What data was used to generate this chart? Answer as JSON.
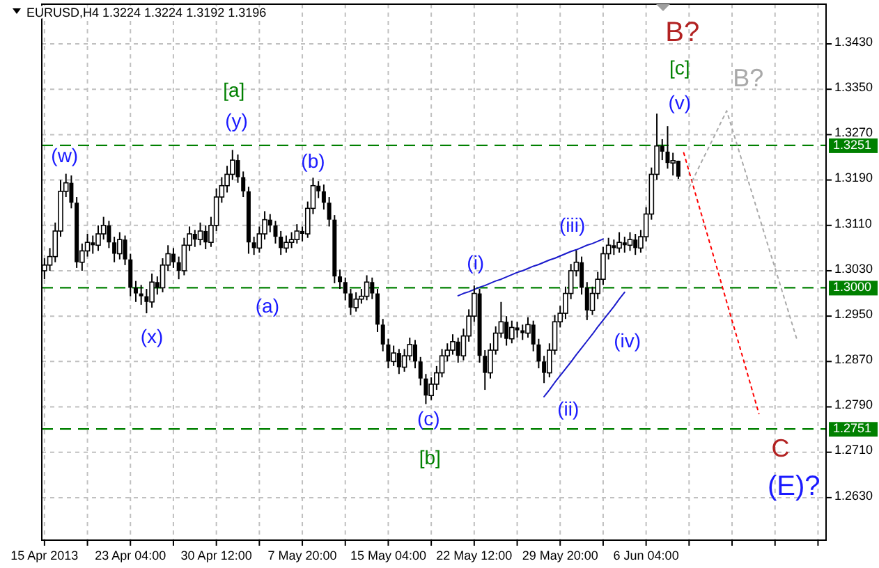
{
  "chart_data": {
    "type": "candlestick",
    "title": "EURUSD,H4 1.3224 1.3224 1.3192 1.3196",
    "color": "#000000",
    "grid": true,
    "categories": [
      "15 Apr 2013",
      null,
      null,
      null,
      null,
      null,
      null,
      null,
      null,
      null,
      null,
      null,
      null,
      null,
      null,
      null,
      "23 Apr 04:00",
      null,
      null,
      null,
      null,
      null,
      null,
      null,
      null,
      null,
      null,
      null,
      null,
      null,
      null,
      null,
      "30 Apr 12:00",
      null,
      null,
      null,
      null,
      null,
      null,
      null,
      null,
      null,
      null,
      null,
      null,
      null,
      null,
      null,
      "7 May 20:00",
      null,
      null,
      null,
      null,
      null,
      null,
      null,
      null,
      null,
      null,
      null,
      null,
      null,
      null,
      null,
      "15 May 04:00",
      null,
      null,
      null,
      null,
      null,
      null,
      null,
      null,
      null,
      null,
      null,
      null,
      null,
      null,
      null,
      "22 May 12:00",
      null,
      null,
      null,
      null,
      null,
      null,
      null,
      null,
      null,
      null,
      null,
      null,
      null,
      null,
      null,
      "29 May 20:00",
      null,
      null,
      null,
      null,
      null,
      null,
      null,
      null,
      null,
      null,
      null,
      null,
      null,
      null,
      null,
      "6 Jun 04:00",
      null,
      null,
      null,
      null,
      null,
      null,
      null,
      null,
      null,
      null,
      null,
      null,
      null,
      null,
      null,
      null,
      null,
      null,
      null,
      null,
      null,
      null,
      null,
      null,
      null,
      null,
      null,
      null,
      null,
      null,
      null,
      null,
      null
    ],
    "ohlc": [
      [
        1.303,
        1.3052,
        1.3015,
        1.304
      ],
      [
        1.304,
        1.307,
        1.303,
        1.3055
      ],
      [
        1.3055,
        1.3115,
        1.3045,
        1.31
      ],
      [
        1.31,
        1.319,
        1.309,
        1.317
      ],
      [
        1.317,
        1.3201,
        1.316,
        1.3185
      ],
      [
        1.3185,
        1.3198,
        1.314,
        1.315
      ],
      [
        1.315,
        1.316,
        1.3035,
        1.3045
      ],
      [
        1.3045,
        1.3078,
        1.303,
        1.3065
      ],
      [
        1.3065,
        1.3095,
        1.3055,
        1.308
      ],
      [
        1.308,
        1.3092,
        1.306,
        1.3075
      ],
      [
        1.3075,
        1.311,
        1.3065,
        1.3095
      ],
      [
        1.3095,
        1.3125,
        1.3085,
        1.311
      ],
      [
        1.311,
        1.3118,
        1.307,
        1.308
      ],
      [
        1.308,
        1.309,
        1.3045,
        1.306
      ],
      [
        1.306,
        1.3098,
        1.305,
        1.3085
      ],
      [
        1.3085,
        1.3092,
        1.304,
        1.305
      ],
      [
        1.305,
        1.306,
        1.2985,
        1.3
      ],
      [
        1.3,
        1.3012,
        1.2975,
        1.299
      ],
      [
        1.299,
        1.3005,
        1.297,
        1.2985
      ],
      [
        1.2985,
        1.2998,
        1.2955,
        1.2975
      ],
      [
        1.2975,
        1.3025,
        1.2965,
        1.301
      ],
      [
        1.301,
        1.302,
        1.2988,
        1.3
      ],
      [
        1.3,
        1.3052,
        1.2992,
        1.304
      ],
      [
        1.304,
        1.3075,
        1.303,
        1.306
      ],
      [
        1.306,
        1.307,
        1.3035,
        1.3045
      ],
      [
        1.3045,
        1.3055,
        1.3015,
        1.303
      ],
      [
        1.303,
        1.3088,
        1.3022,
        1.3075
      ],
      [
        1.3075,
        1.3108,
        1.3065,
        1.3095
      ],
      [
        1.3095,
        1.3102,
        1.3072,
        1.3085
      ],
      [
        1.3085,
        1.3115,
        1.3075,
        1.31
      ],
      [
        1.31,
        1.311,
        1.3068,
        1.308
      ],
      [
        1.308,
        1.3125,
        1.3072,
        1.311
      ],
      [
        1.311,
        1.3175,
        1.31,
        1.316
      ],
      [
        1.316,
        1.3195,
        1.315,
        1.318
      ],
      [
        1.318,
        1.3215,
        1.3168,
        1.32
      ],
      [
        1.32,
        1.3243,
        1.319,
        1.3225
      ],
      [
        1.3225,
        1.3235,
        1.3185,
        1.3195
      ],
      [
        1.3195,
        1.3205,
        1.316,
        1.317
      ],
      [
        1.317,
        1.3178,
        1.306,
        1.308
      ],
      [
        1.308,
        1.309,
        1.3058,
        1.307
      ],
      [
        1.307,
        1.3108,
        1.3062,
        1.3095
      ],
      [
        1.3095,
        1.3135,
        1.3085,
        1.312
      ],
      [
        1.312,
        1.313,
        1.3098,
        1.311
      ],
      [
        1.311,
        1.3118,
        1.3078,
        1.309
      ],
      [
        1.309,
        1.31,
        1.3058,
        1.307
      ],
      [
        1.307,
        1.3092,
        1.3062,
        1.308
      ],
      [
        1.308,
        1.3098,
        1.307,
        1.3085
      ],
      [
        1.3085,
        1.3112,
        1.3078,
        1.31
      ],
      [
        1.31,
        1.3108,
        1.3082,
        1.3095
      ],
      [
        1.3095,
        1.3152,
        1.3088,
        1.314
      ],
      [
        1.314,
        1.3194,
        1.313,
        1.318
      ],
      [
        1.318,
        1.3188,
        1.3158,
        1.317
      ],
      [
        1.317,
        1.3182,
        1.3138,
        1.315
      ],
      [
        1.315,
        1.316,
        1.3108,
        1.312
      ],
      [
        1.312,
        1.3128,
        1.3008,
        1.302
      ],
      [
        1.302,
        1.3032,
        1.2998,
        1.301
      ],
      [
        1.301,
        1.3018,
        1.2978,
        1.299
      ],
      [
        1.299,
        1.2998,
        1.2952,
        1.2965
      ],
      [
        1.2965,
        1.2992,
        1.2958,
        1.298
      ],
      [
        1.298,
        1.2998,
        1.2972,
        1.2985
      ],
      [
        1.2985,
        1.3022,
        1.2978,
        1.301
      ],
      [
        1.301,
        1.3018,
        1.298,
        1.299
      ],
      [
        1.299,
        1.2998,
        1.2922,
        1.2935
      ],
      [
        1.2935,
        1.2945,
        1.2888,
        1.29
      ],
      [
        1.29,
        1.291,
        1.2858,
        1.287
      ],
      [
        1.287,
        1.2898,
        1.2862,
        1.2885
      ],
      [
        1.2885,
        1.2892,
        1.2848,
        1.286
      ],
      [
        1.286,
        1.2892,
        1.2852,
        1.288
      ],
      [
        1.288,
        1.2912,
        1.2872,
        1.29
      ],
      [
        1.29,
        1.2908,
        1.2858,
        1.287
      ],
      [
        1.287,
        1.2878,
        1.2828,
        1.284
      ],
      [
        1.284,
        1.2848,
        1.2795,
        1.281
      ],
      [
        1.281,
        1.2842,
        1.2802,
        1.283
      ],
      [
        1.283,
        1.2862,
        1.282,
        1.285
      ],
      [
        1.285,
        1.2892,
        1.2842,
        1.288
      ],
      [
        1.288,
        1.2902,
        1.287,
        1.289
      ],
      [
        1.289,
        1.2918,
        1.2882,
        1.2905
      ],
      [
        1.2905,
        1.2912,
        1.2868,
        1.288
      ],
      [
        1.288,
        1.2928,
        1.2872,
        1.2915
      ],
      [
        1.2915,
        1.2962,
        1.2905,
        1.295
      ],
      [
        1.295,
        1.3004,
        1.294,
        1.299
      ],
      [
        1.299,
        1.2998,
        1.2868,
        1.288
      ],
      [
        1.288,
        1.289,
        1.282,
        1.285
      ],
      [
        1.285,
        1.2902,
        1.284,
        1.289
      ],
      [
        1.289,
        1.2932,
        1.2882,
        1.292
      ],
      [
        1.292,
        1.2975,
        1.2912,
        1.294
      ],
      [
        1.294,
        1.295,
        1.2898,
        1.291
      ],
      [
        1.291,
        1.2942,
        1.2902,
        1.293
      ],
      [
        1.293,
        1.294,
        1.2912,
        1.2925
      ],
      [
        1.2925,
        1.2935,
        1.2908,
        1.292
      ],
      [
        1.292,
        1.2948,
        1.2912,
        1.2935
      ],
      [
        1.2935,
        1.2942,
        1.2888,
        1.29
      ],
      [
        1.29,
        1.291,
        1.2858,
        1.287
      ],
      [
        1.287,
        1.288,
        1.2832,
        1.285
      ],
      [
        1.285,
        1.2902,
        1.2842,
        1.289
      ],
      [
        1.289,
        1.2952,
        1.2882,
        1.294
      ],
      [
        1.294,
        1.2968,
        1.293,
        1.2955
      ],
      [
        1.2955,
        1.3002,
        1.2945,
        1.299
      ],
      [
        1.299,
        1.3042,
        1.298,
        1.303
      ],
      [
        1.303,
        1.3066,
        1.302,
        1.3045
      ],
      [
        1.3045,
        1.3055,
        1.2988,
        1.3
      ],
      [
        1.3,
        1.301,
        1.2943,
        1.296
      ],
      [
        1.296,
        1.3002,
        1.2952,
        1.299
      ],
      [
        1.299,
        1.3028,
        1.298,
        1.3015
      ],
      [
        1.3015,
        1.3072,
        1.3005,
        1.306
      ],
      [
        1.306,
        1.3088,
        1.305,
        1.3075
      ],
      [
        1.3075,
        1.3085,
        1.3058,
        1.307
      ],
      [
        1.307,
        1.3098,
        1.3062,
        1.308
      ],
      [
        1.308,
        1.309,
        1.3062,
        1.3075
      ],
      [
        1.3075,
        1.3098,
        1.3065,
        1.3085
      ],
      [
        1.3085,
        1.3095,
        1.3058,
        1.307
      ],
      [
        1.307,
        1.3102,
        1.3062,
        1.309
      ],
      [
        1.309,
        1.3142,
        1.3082,
        1.313
      ],
      [
        1.313,
        1.3212,
        1.312,
        1.32
      ],
      [
        1.32,
        1.3307,
        1.319,
        1.325
      ],
      [
        1.325,
        1.3262,
        1.3225,
        1.324
      ],
      [
        1.324,
        1.3285,
        1.321,
        1.322
      ],
      [
        1.322,
        1.3238,
        1.3198,
        1.3224
      ],
      [
        1.3224,
        1.3224,
        1.3192,
        1.3196
      ],
      null,
      null,
      null,
      null,
      null,
      null,
      null,
      null,
      null,
      null,
      null,
      null,
      null,
      null,
      null,
      null,
      null,
      null,
      null,
      null,
      null,
      null,
      null,
      null,
      null,
      null,
      null
    ],
    "ylim": [
      1.2555,
      1.35
    ],
    "yticks": [
      {
        "value": 1.263,
        "label": "1.2630"
      },
      {
        "value": 1.271,
        "label": "1.2710"
      },
      {
        "value": 1.279,
        "label": "1.2790"
      },
      {
        "value": 1.287,
        "label": "1.2870"
      },
      {
        "value": 1.295,
        "label": "1.2950"
      },
      {
        "value": 1.303,
        "label": "1.3030"
      },
      {
        "value": 1.311,
        "label": "1.3110"
      },
      {
        "value": 1.319,
        "label": "1.3190"
      },
      {
        "value": 1.327,
        "label": "1.3270"
      },
      {
        "value": 1.335,
        "label": "1.3350"
      },
      {
        "value": 1.343,
        "label": "1.3430"
      }
    ],
    "ref_lines": [
      {
        "axis": "y",
        "value": 1.3251,
        "label": "1.3251",
        "color": "#008000",
        "line_style": "dashed"
      },
      {
        "axis": "y",
        "value": 1.3,
        "label": "1.3000",
        "color": "#008000",
        "line_style": "dashed"
      },
      {
        "axis": "y",
        "value": 1.2751,
        "label": "1.2751",
        "color": "#008000",
        "line_style": "dashed"
      }
    ],
    "series": [
      {
        "type": "line",
        "color": "#1a1acc",
        "line_style": "solid",
        "values": [
          null,
          null,
          null,
          null,
          null,
          null,
          null,
          null,
          null,
          null,
          null,
          null,
          null,
          null,
          null,
          null,
          null,
          null,
          null,
          null,
          null,
          null,
          null,
          null,
          null,
          null,
          null,
          null,
          null,
          null,
          null,
          null,
          null,
          null,
          null,
          null,
          null,
          null,
          null,
          null,
          null,
          null,
          null,
          null,
          null,
          null,
          null,
          null,
          null,
          null,
          null,
          null,
          null,
          null,
          null,
          null,
          null,
          null,
          null,
          null,
          null,
          null,
          null,
          null,
          null,
          null,
          null,
          null,
          null,
          null,
          null,
          null,
          null,
          null,
          null,
          null,
          null,
          1.2986,
          1.299,
          1.2993,
          1.2997,
          1.3001,
          1.3004,
          1.3008,
          1.3012,
          1.3015,
          1.3019,
          1.3023,
          1.3027,
          1.303,
          1.3034,
          1.3038,
          1.3041,
          1.3045,
          1.3049,
          1.3052,
          1.3056,
          1.306,
          1.3064,
          1.3067,
          1.3071,
          1.3075,
          1.3078,
          1.3082,
          1.3086,
          null,
          null,
          null,
          null,
          null,
          null,
          null,
          null,
          null,
          null,
          null,
          null,
          null,
          null,
          null,
          null,
          null,
          null,
          null,
          null,
          null,
          null,
          null,
          null,
          null,
          null,
          null,
          null,
          null,
          null,
          null,
          null,
          null,
          null,
          null,
          null,
          null,
          null,
          null,
          null,
          null
        ]
      },
      {
        "type": "line",
        "color": "#1a1acc",
        "line_style": "solid",
        "values": [
          null,
          null,
          null,
          null,
          null,
          null,
          null,
          null,
          null,
          null,
          null,
          null,
          null,
          null,
          null,
          null,
          null,
          null,
          null,
          null,
          null,
          null,
          null,
          null,
          null,
          null,
          null,
          null,
          null,
          null,
          null,
          null,
          null,
          null,
          null,
          null,
          null,
          null,
          null,
          null,
          null,
          null,
          null,
          null,
          null,
          null,
          null,
          null,
          null,
          null,
          null,
          null,
          null,
          null,
          null,
          null,
          null,
          null,
          null,
          null,
          null,
          null,
          null,
          null,
          null,
          null,
          null,
          null,
          null,
          null,
          null,
          null,
          null,
          null,
          null,
          null,
          null,
          null,
          null,
          null,
          null,
          null,
          null,
          null,
          null,
          null,
          null,
          null,
          null,
          null,
          null,
          null,
          null,
          1.2808,
          1.282,
          1.2833,
          1.2845,
          1.2857,
          1.2869,
          1.2882,
          1.2894,
          1.2906,
          1.2918,
          1.2931,
          1.2943,
          1.2955,
          1.2967,
          1.298,
          1.2992,
          null,
          null,
          null,
          null,
          null,
          null,
          null,
          null,
          null,
          null,
          null,
          null,
          null,
          null,
          null,
          null,
          null,
          null,
          null,
          null,
          null,
          null,
          null,
          null,
          null,
          null,
          null,
          null,
          null,
          null,
          null,
          null,
          null,
          null,
          null,
          null,
          null
        ]
      },
      {
        "type": "line",
        "color": "#ff0000",
        "line_style": "dotted",
        "values": [
          null,
          null,
          null,
          null,
          null,
          null,
          null,
          null,
          null,
          null,
          null,
          null,
          null,
          null,
          null,
          null,
          null,
          null,
          null,
          null,
          null,
          null,
          null,
          null,
          null,
          null,
          null,
          null,
          null,
          null,
          null,
          null,
          null,
          null,
          null,
          null,
          null,
          null,
          null,
          null,
          null,
          null,
          null,
          null,
          null,
          null,
          null,
          null,
          null,
          null,
          null,
          null,
          null,
          null,
          null,
          null,
          null,
          null,
          null,
          null,
          null,
          null,
          null,
          null,
          null,
          null,
          null,
          null,
          null,
          null,
          null,
          null,
          null,
          null,
          null,
          null,
          null,
          null,
          null,
          null,
          null,
          null,
          null,
          null,
          null,
          null,
          null,
          null,
          null,
          null,
          null,
          null,
          null,
          null,
          null,
          null,
          null,
          null,
          null,
          null,
          null,
          null,
          null,
          null,
          null,
          null,
          null,
          null,
          null,
          null,
          null,
          null,
          null,
          null,
          null,
          null,
          null,
          null,
          null,
          1.3238,
          1.3205,
          1.3172,
          1.3139,
          1.3107,
          1.3074,
          1.3041,
          1.3008,
          1.2975,
          1.2942,
          1.291,
          1.2877,
          1.2844,
          1.2811,
          1.2778,
          null,
          null,
          null,
          null,
          null,
          null,
          null,
          null,
          null,
          null,
          null,
          null
        ]
      },
      {
        "type": "line",
        "color": "#a9a9a9",
        "line_style": "dotted",
        "values": [
          null,
          null,
          null,
          null,
          null,
          null,
          null,
          null,
          null,
          null,
          null,
          null,
          null,
          null,
          null,
          null,
          null,
          null,
          null,
          null,
          null,
          null,
          null,
          null,
          null,
          null,
          null,
          null,
          null,
          null,
          null,
          null,
          null,
          null,
          null,
          null,
          null,
          null,
          null,
          null,
          null,
          null,
          null,
          null,
          null,
          null,
          null,
          null,
          null,
          null,
          null,
          null,
          null,
          null,
          null,
          null,
          null,
          null,
          null,
          null,
          null,
          null,
          null,
          null,
          null,
          null,
          null,
          null,
          null,
          null,
          null,
          null,
          null,
          null,
          null,
          null,
          null,
          null,
          null,
          null,
          null,
          null,
          null,
          null,
          null,
          null,
          null,
          null,
          null,
          null,
          null,
          null,
          null,
          null,
          null,
          null,
          null,
          null,
          null,
          null,
          null,
          null,
          null,
          null,
          null,
          null,
          null,
          null,
          null,
          null,
          null,
          null,
          null,
          null,
          null,
          null,
          null,
          null,
          null,
          null,
          1.3177,
          1.3196,
          1.3216,
          1.3235,
          1.3254,
          1.3273,
          1.3293,
          1.3312,
          1.3281,
          1.325,
          1.3219,
          1.3189,
          1.3158,
          1.3127,
          1.3096,
          1.3065,
          1.3035,
          1.3004,
          1.2973,
          1.2942,
          1.2911,
          null,
          null,
          null,
          null,
          null
        ]
      }
    ],
    "annotations": [
      "(w)",
      "[a]",
      "(y)",
      "(b)",
      "(x)",
      "(a)",
      "(c)",
      "[b]",
      "(i)",
      "(ii)",
      "(iii)",
      "(iv)",
      "(v)",
      "[c]",
      "B?",
      "B?",
      "C",
      "(E)?"
    ]
  }
}
